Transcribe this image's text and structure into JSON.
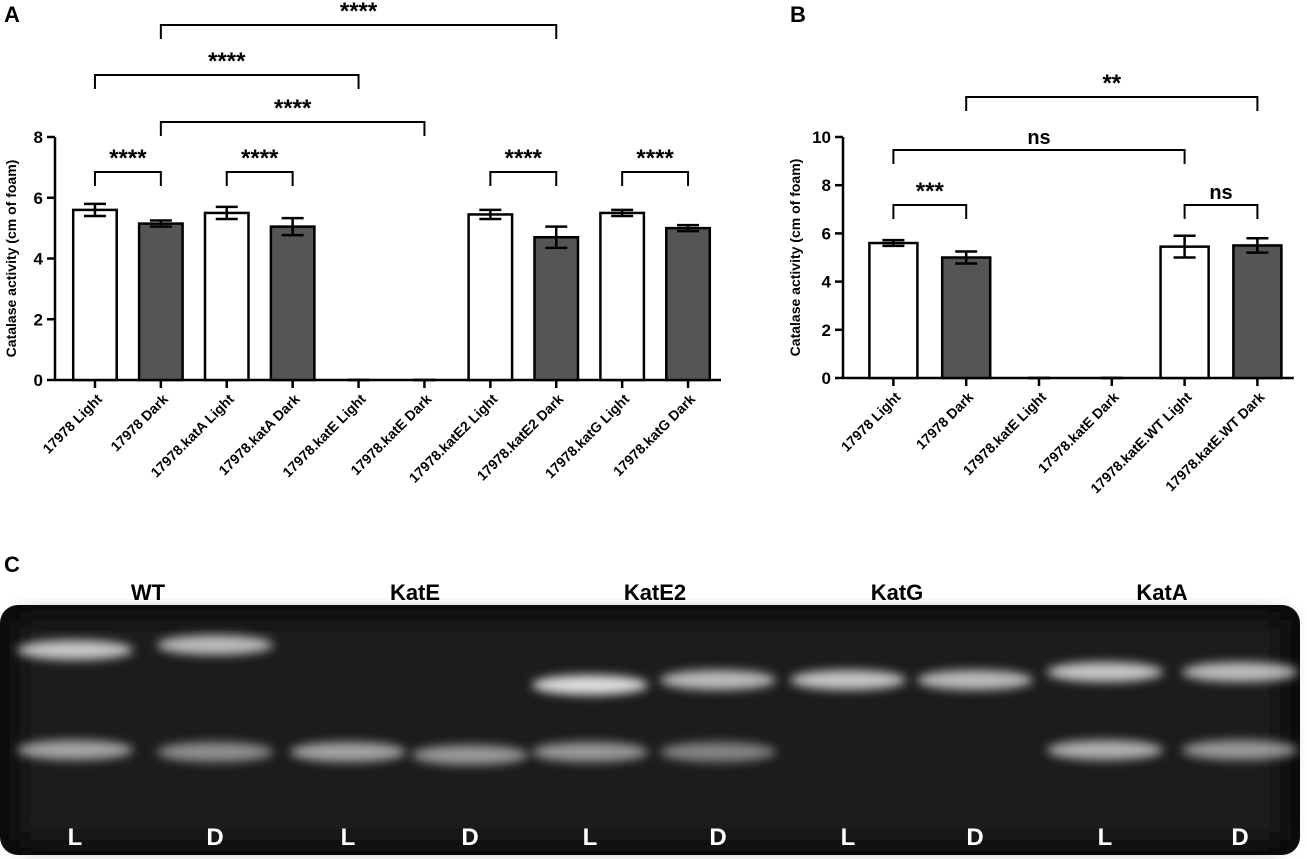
{
  "panels": [
    "A",
    "B",
    "C"
  ],
  "chart_data": [
    {
      "type": "bar",
      "y_label": "Catalase activity (cm of foam)",
      "categories": [
        "17978 Light",
        "17978 Dark",
        "17978.katA Light",
        "17978.katA Dark",
        "17978.katE Light",
        "17978.katE Dark",
        "17978.katE2 Light",
        "17978.katE2 Dark",
        "17978.katG Light",
        "17978.katG Dark"
      ],
      "values": [
        5.6,
        5.15,
        5.5,
        5.05,
        0,
        0,
        5.45,
        4.7,
        5.5,
        5.0
      ],
      "errors": [
        0.2,
        0.1,
        0.2,
        0.28,
        0,
        0,
        0.15,
        0.35,
        0.1,
        0.1
      ],
      "colors": [
        "#ffffff",
        "#555555",
        "#ffffff",
        "#555555",
        "#ffffff",
        "#555555",
        "#ffffff",
        "#555555",
        "#ffffff",
        "#555555"
      ],
      "ylim": [
        0,
        8
      ],
      "yticks": [
        0,
        2,
        4,
        6,
        8
      ],
      "annotations": [
        {
          "text": "****",
          "from": 0,
          "to": 1
        },
        {
          "text": "****",
          "from": 2,
          "to": 3
        },
        {
          "text": "****",
          "from": 6,
          "to": 7
        },
        {
          "text": "****",
          "from": 8,
          "to": 9
        },
        {
          "text": "****",
          "from": 0,
          "to": 4
        },
        {
          "text": "****",
          "from": 1,
          "to": 5
        },
        {
          "text": "****",
          "from": 1,
          "to": 7
        }
      ]
    },
    {
      "type": "bar",
      "y_label": "Catalase activity (cm of foam)",
      "categories": [
        "17978 Light",
        "17978 Dark",
        "17978.katE Light",
        "17978.katE Dark",
        "17978.katE.WT Light",
        "17978.katE.WT Dark"
      ],
      "values": [
        5.6,
        5.0,
        0,
        0,
        5.45,
        5.5
      ],
      "errors": [
        0.12,
        0.25,
        0,
        0,
        0.45,
        0.3
      ],
      "colors": [
        "#ffffff",
        "#555555",
        "#ffffff",
        "#555555",
        "#ffffff",
        "#555555"
      ],
      "ylim": [
        0,
        10
      ],
      "yticks": [
        0,
        2,
        4,
        6,
        8,
        10
      ],
      "annotations": [
        {
          "text": "***",
          "from": 0,
          "to": 1
        },
        {
          "text": "ns",
          "from": 4,
          "to": 5
        },
        {
          "text": "ns",
          "from": 0,
          "to": 4
        },
        {
          "text": "**",
          "from": 1,
          "to": 5
        }
      ]
    }
  ],
  "gel": {
    "groups": [
      "WT",
      "KatE",
      "KatE2",
      "KatG",
      "KatA"
    ],
    "lanes": [
      "L",
      "D",
      "L",
      "D",
      "L",
      "D",
      "L",
      "D",
      "L",
      "D"
    ]
  }
}
